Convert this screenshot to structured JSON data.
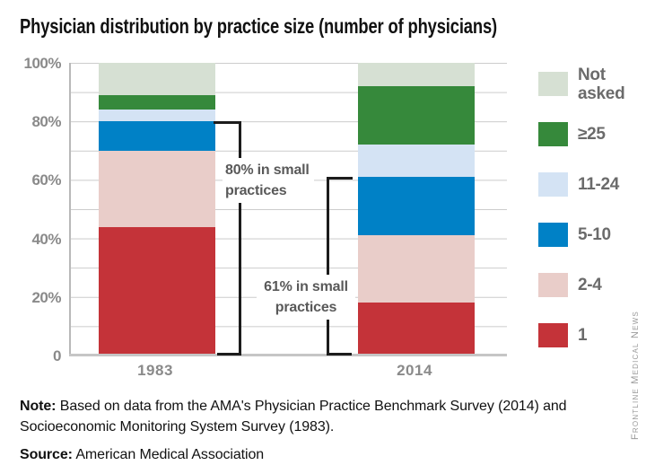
{
  "title": "Physician distribution by practice size (number of physicians)",
  "chart_data": {
    "type": "bar",
    "stacked": true,
    "title": "Physician distribution by practice size (number of physicians)",
    "categories": [
      "1983",
      "2014"
    ],
    "series": [
      {
        "name": "1",
        "color": "#c43339",
        "values": [
          44,
          18
        ]
      },
      {
        "name": "2-4",
        "color": "#e9cdc9",
        "values": [
          26,
          23
        ]
      },
      {
        "name": "5-10",
        "color": "#0081c6",
        "values": [
          10,
          20
        ]
      },
      {
        "name": "11-24",
        "color": "#d4e3f4",
        "values": [
          4,
          11
        ]
      },
      {
        "name": "≥25",
        "color": "#36893b",
        "values": [
          5,
          20
        ]
      },
      {
        "name": "Not asked",
        "color": "#d6e0d3",
        "values": [
          11,
          8
        ]
      }
    ],
    "ylim": [
      0,
      100
    ],
    "grid_interval": 10,
    "yticks": [
      {
        "value": 100,
        "label": "100%"
      },
      {
        "value": 80,
        "label": "80%"
      },
      {
        "value": 60,
        "label": "60%"
      },
      {
        "value": 40,
        "label": "40%"
      },
      {
        "value": 20,
        "label": "20%"
      },
      {
        "value": 0,
        "label": "0"
      }
    ],
    "legend_position": "right",
    "legend_order_top_to_bottom": [
      "Not asked",
      "≥25",
      "11-24",
      "5-10",
      "2-4",
      "1"
    ],
    "annotations": [
      {
        "text": "80% in small practices",
        "category": "1983",
        "span_percent": [
          0,
          80
        ]
      },
      {
        "text": "61% in small practices",
        "category": "2014",
        "span_percent": [
          0,
          61
        ]
      }
    ]
  },
  "footer": {
    "note_label": "Note:",
    "note_line1": "Based on data from the AMA's Physician Practice Benchmark Survey (2014) and",
    "note_line2": "Socioeconomic Monitoring System Survey (1983).",
    "source_label": "Source:",
    "source_text": "American Medical Association"
  },
  "watermark": "Frontline Medical News"
}
